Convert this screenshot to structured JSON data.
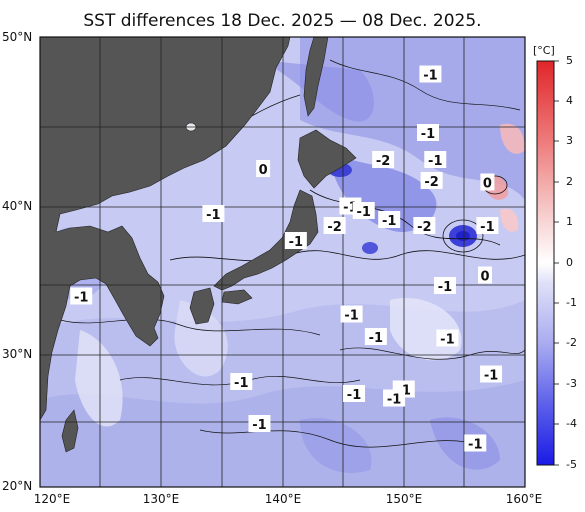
{
  "title": "SST differences 18 Dec. 2025 — 08 Dec. 2025.",
  "y_axis_ticks": [
    "50°N",
    "40°N",
    "30°N",
    "20°N"
  ],
  "x_axis_ticks": [
    "120°E",
    "130°E",
    "140°E",
    "150°E",
    "160°E"
  ],
  "colorbar": {
    "unit": "[°C]",
    "tick_labels": [
      "5",
      "4",
      "3",
      "2",
      "1",
      "0",
      "-1",
      "-2",
      "-3",
      "-4",
      "-5"
    ],
    "range": [
      -5,
      5
    ],
    "colors": {
      "warm": "#e0262a",
      "zero": "#ffffff",
      "cold": "#1a1ae6"
    }
  },
  "map": {
    "lon_range": [
      120,
      160
    ],
    "lat_range": [
      20,
      50
    ],
    "land_color": "#555555",
    "contour_labels": [
      {
        "text": "-1",
        "lon": 152.2,
        "lat": 47.5
      },
      {
        "text": "-1",
        "lon": 152.0,
        "lat": 43.6
      },
      {
        "text": "-2",
        "lon": 148.3,
        "lat": 41.8
      },
      {
        "text": "-1",
        "lon": 152.6,
        "lat": 41.8
      },
      {
        "text": "0",
        "lon": 138.4,
        "lat": 41.2
      },
      {
        "text": "-2",
        "lon": 152.3,
        "lat": 40.4
      },
      {
        "text": "0",
        "lon": 156.9,
        "lat": 40.3
      },
      {
        "text": "-1",
        "lon": 145.6,
        "lat": 38.7
      },
      {
        "text": "-1",
        "lon": 134.3,
        "lat": 38.2
      },
      {
        "text": "-1",
        "lon": 146.7,
        "lat": 38.4
      },
      {
        "text": "-1",
        "lon": 148.8,
        "lat": 37.8
      },
      {
        "text": "-2",
        "lon": 144.3,
        "lat": 37.4
      },
      {
        "text": "-2",
        "lon": 151.7,
        "lat": 37.4
      },
      {
        "text": "-1",
        "lon": 156.9,
        "lat": 37.4
      },
      {
        "text": "-1",
        "lon": 141.1,
        "lat": 36.4
      },
      {
        "text": "0",
        "lon": 156.7,
        "lat": 34.1
      },
      {
        "text": "-1",
        "lon": 123.4,
        "lat": 32.7
      },
      {
        "text": "-1",
        "lon": 153.4,
        "lat": 33.4
      },
      {
        "text": "-1",
        "lon": 145.7,
        "lat": 31.5
      },
      {
        "text": "-1",
        "lon": 147.7,
        "lat": 30.0
      },
      {
        "text": "-1",
        "lon": 153.6,
        "lat": 29.9
      },
      {
        "text": "-1",
        "lon": 157.2,
        "lat": 27.5
      },
      {
        "text": "-1",
        "lon": 136.6,
        "lat": 27.0
      },
      {
        "text": "-1",
        "lon": 145.9,
        "lat": 26.2
      },
      {
        "text": "-1",
        "lon": 150.0,
        "lat": 26.5
      },
      {
        "text": "-1",
        "lon": 149.2,
        "lat": 25.9
      },
      {
        "text": "-1",
        "lon": 138.1,
        "lat": 24.2
      },
      {
        "text": "-1",
        "lon": 155.9,
        "lat": 22.9
      }
    ]
  }
}
